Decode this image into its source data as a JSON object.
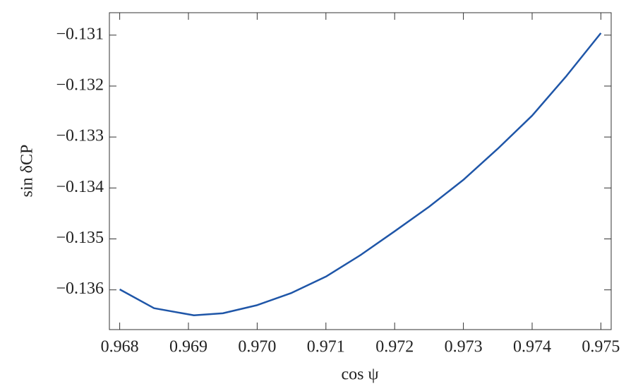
{
  "chart_data": {
    "type": "line",
    "x_label": "cos ψ",
    "y_label": "sin δCP",
    "x": [
      0.968,
      0.9685,
      0.96908,
      0.9695,
      0.97,
      0.9705,
      0.971,
      0.9715,
      0.972,
      0.9725,
      0.973,
      0.9735,
      0.974,
      0.9745,
      0.975
    ],
    "series": [
      {
        "color": "#1f56a8",
        "values": [
          -0.13599,
          -0.13636,
          -0.1365,
          -0.13646,
          -0.1363,
          -0.13606,
          -0.13574,
          -0.13532,
          -0.13485,
          -0.13437,
          -0.13384,
          -0.13323,
          -0.13258,
          -0.1318,
          -0.13096
        ]
      }
    ],
    "xlim": [
      0.96785,
      0.97515
    ],
    "ylim": [
      -0.13678,
      -0.13056
    ],
    "xticks": [
      0.968,
      0.969,
      {
        "value": 0.97,
        "label": "0.970"
      },
      0.971,
      0.972,
      0.973,
      0.974,
      0.975
    ],
    "yticks": [
      {
        "value": -0.136,
        "label": "−0.136"
      },
      {
        "value": -0.135,
        "label": "−0.135"
      },
      {
        "value": -0.134,
        "label": "−0.134"
      },
      {
        "value": -0.133,
        "label": "−0.133"
      },
      {
        "value": -0.132,
        "label": "−0.132"
      },
      {
        "value": -0.131,
        "label": "−0.131"
      }
    ]
  }
}
